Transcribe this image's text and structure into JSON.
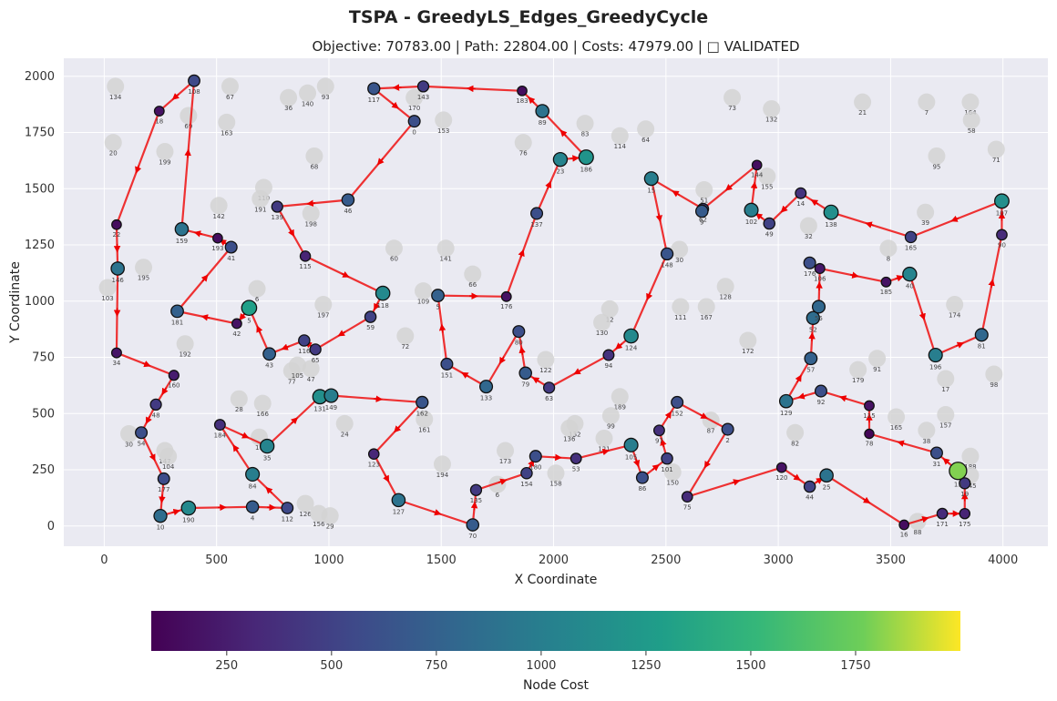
{
  "chart_data": {
    "type": "scatter",
    "title": "TSPA - GreedyLS_Edges_GreedyCycle",
    "subtitle": "Objective: 70783.00 | Path: 22804.00 | Costs: 47979.00 | □ VALIDATED",
    "xlabel": "X Coordinate",
    "ylabel": "Y Coordinate",
    "xlim": [
      -180,
      4200
    ],
    "ylim": [
      -90,
      2080
    ],
    "xticks": [
      0,
      500,
      1000,
      1500,
      2000,
      2500,
      3000,
      3500,
      4000
    ],
    "yticks": [
      0,
      250,
      500,
      750,
      1000,
      1250,
      1500,
      1750,
      2000
    ],
    "grid": true,
    "colorbar": {
      "label": "Node Cost",
      "min": 70,
      "max": 2000,
      "ticks": [
        250,
        500,
        750,
        1000,
        1250,
        1500,
        1750
      ]
    },
    "selected_nodes": [
      {
        "id": "108",
        "x": 400,
        "y": 1980,
        "cost": 560
      },
      {
        "id": "18",
        "x": 245,
        "y": 1845,
        "cost": 180
      },
      {
        "id": "22",
        "x": 55,
        "y": 1340,
        "cost": 150
      },
      {
        "id": "146",
        "x": 60,
        "y": 1145,
        "cost": 900
      },
      {
        "id": "34",
        "x": 55,
        "y": 770,
        "cost": 200
      },
      {
        "id": "160",
        "x": 310,
        "y": 670,
        "cost": 250
      },
      {
        "id": "48",
        "x": 230,
        "y": 540,
        "cost": 450
      },
      {
        "id": "54",
        "x": 165,
        "y": 415,
        "cost": 600
      },
      {
        "id": "177",
        "x": 265,
        "y": 210,
        "cost": 580
      },
      {
        "id": "10",
        "x": 250,
        "y": 45,
        "cost": 850
      },
      {
        "id": "190",
        "x": 375,
        "y": 80,
        "cost": 1100
      },
      {
        "id": "4",
        "x": 660,
        "y": 85,
        "cost": 700
      },
      {
        "id": "112",
        "x": 815,
        "y": 80,
        "cost": 550
      },
      {
        "id": "35",
        "x": 725,
        "y": 355,
        "cost": 1050
      },
      {
        "id": "84",
        "x": 660,
        "y": 230,
        "cost": 1000
      },
      {
        "id": "184",
        "x": 515,
        "y": 450,
        "cost": 380
      },
      {
        "id": "131",
        "x": 960,
        "y": 575,
        "cost": 1150
      },
      {
        "id": "149",
        "x": 1010,
        "y": 580,
        "cost": 1000
      },
      {
        "id": "162",
        "x": 1415,
        "y": 550,
        "cost": 650
      },
      {
        "id": "123",
        "x": 1200,
        "y": 320,
        "cost": 320
      },
      {
        "id": "127",
        "x": 1310,
        "y": 115,
        "cost": 900
      },
      {
        "id": "70",
        "x": 1640,
        "y": 5,
        "cost": 700
      },
      {
        "id": "135",
        "x": 1655,
        "y": 160,
        "cost": 450
      },
      {
        "id": "154",
        "x": 1880,
        "y": 235,
        "cost": 500
      },
      {
        "id": "180",
        "x": 1920,
        "y": 310,
        "cost": 600
      },
      {
        "id": "53",
        "x": 2100,
        "y": 300,
        "cost": 380
      },
      {
        "id": "105",
        "x": 2345,
        "y": 360,
        "cost": 1000
      },
      {
        "id": "86",
        "x": 2395,
        "y": 215,
        "cost": 600
      },
      {
        "id": "101",
        "x": 2505,
        "y": 300,
        "cost": 500
      },
      {
        "id": "97",
        "x": 2470,
        "y": 425,
        "cost": 380
      },
      {
        "id": "152",
        "x": 2550,
        "y": 550,
        "cost": 600
      },
      {
        "id": "2",
        "x": 2775,
        "y": 430,
        "cost": 600
      },
      {
        "id": "75",
        "x": 2595,
        "y": 130,
        "cost": 350
      },
      {
        "id": "120",
        "x": 3015,
        "y": 260,
        "cost": 180
      },
      {
        "id": "44",
        "x": 3140,
        "y": 175,
        "cost": 500
      },
      {
        "id": "25",
        "x": 3215,
        "y": 225,
        "cost": 900
      },
      {
        "id": "16",
        "x": 3560,
        "y": 5,
        "cost": 150
      },
      {
        "id": "171",
        "x": 3730,
        "y": 55,
        "cost": 350
      },
      {
        "id": "175",
        "x": 3830,
        "y": 55,
        "cost": 300
      },
      {
        "id": "19",
        "x": 3830,
        "y": 190,
        "cost": 450
      },
      {
        "id": "13",
        "x": 3800,
        "y": 245,
        "cost": 1800
      },
      {
        "id": "31",
        "x": 3705,
        "y": 325,
        "cost": 600
      },
      {
        "id": "78",
        "x": 3405,
        "y": 410,
        "cost": 100
      },
      {
        "id": "115",
        "x": 3405,
        "y": 535,
        "cost": 180
      },
      {
        "id": "92",
        "x": 3190,
        "y": 600,
        "cost": 600
      },
      {
        "id": "129",
        "x": 3035,
        "y": 555,
        "cost": 900
      },
      {
        "id": "57",
        "x": 3145,
        "y": 745,
        "cost": 750
      },
      {
        "id": "52",
        "x": 3155,
        "y": 925,
        "cost": 850
      },
      {
        "id": "55",
        "x": 3180,
        "y": 975,
        "cost": 800
      },
      {
        "id": "106",
        "x": 3185,
        "y": 1145,
        "cost": 220
      },
      {
        "id": "176",
        "x": 3140,
        "y": 1170,
        "cost": 600
      },
      {
        "id": "185",
        "x": 3480,
        "y": 1085,
        "cost": 180
      },
      {
        "id": "40",
        "x": 3585,
        "y": 1120,
        "cost": 1050
      },
      {
        "id": "196",
        "x": 3700,
        "y": 760,
        "cost": 1000
      },
      {
        "id": "81",
        "x": 3905,
        "y": 850,
        "cost": 800
      },
      {
        "id": "90",
        "x": 3995,
        "y": 1295,
        "cost": 350
      },
      {
        "id": "107",
        "x": 3995,
        "y": 1445,
        "cost": 1150
      },
      {
        "id": "165",
        "x": 3590,
        "y": 1285,
        "cost": 500
      },
      {
        "id": "138",
        "x": 3235,
        "y": 1395,
        "cost": 1150
      },
      {
        "id": "14",
        "x": 3100,
        "y": 1480,
        "cost": 400
      },
      {
        "id": "49",
        "x": 2960,
        "y": 1345,
        "cost": 500
      },
      {
        "id": "102",
        "x": 2880,
        "y": 1405,
        "cost": 1000
      },
      {
        "id": "144",
        "x": 2905,
        "y": 1605,
        "cost": 150
      },
      {
        "id": "62",
        "x": 2665,
        "y": 1410,
        "cost": 480
      },
      {
        "id": "9",
        "x": 2660,
        "y": 1400,
        "cost": 700
      },
      {
        "id": "15",
        "x": 2435,
        "y": 1545,
        "cost": 1000
      },
      {
        "id": "148",
        "x": 2505,
        "y": 1210,
        "cost": 650
      },
      {
        "id": "124",
        "x": 2345,
        "y": 845,
        "cost": 1100
      },
      {
        "id": "94",
        "x": 2245,
        "y": 760,
        "cost": 400
      },
      {
        "id": "63",
        "x": 1980,
        "y": 615,
        "cost": 450
      },
      {
        "id": "79",
        "x": 1875,
        "y": 680,
        "cost": 700
      },
      {
        "id": "80",
        "x": 1845,
        "y": 865,
        "cost": 600
      },
      {
        "id": "133",
        "x": 1700,
        "y": 620,
        "cost": 800
      },
      {
        "id": "151",
        "x": 1525,
        "y": 720,
        "cost": 600
      },
      {
        "id": "5",
        "x": 1485,
        "y": 1025,
        "cost": 750
      },
      {
        "id": "176b",
        "x": 1790,
        "y": 1020,
        "cost": 180
      },
      {
        "id": "137",
        "x": 1925,
        "y": 1390,
        "cost": 600
      },
      {
        "id": "23",
        "x": 2030,
        "y": 1630,
        "cost": 1050
      },
      {
        "id": "186",
        "x": 2145,
        "y": 1640,
        "cost": 1200
      },
      {
        "id": "89",
        "x": 1950,
        "y": 1845,
        "cost": 900
      },
      {
        "id": "183",
        "x": 1860,
        "y": 1935,
        "cost": 150
      },
      {
        "id": "143",
        "x": 1420,
        "y": 1955,
        "cost": 450
      },
      {
        "id": "117",
        "x": 1200,
        "y": 1945,
        "cost": 650
      },
      {
        "id": "0",
        "x": 1380,
        "y": 1800,
        "cost": 600
      },
      {
        "id": "46",
        "x": 1085,
        "y": 1450,
        "cost": 700
      },
      {
        "id": "139",
        "x": 770,
        "y": 1420,
        "cost": 450
      },
      {
        "id": "115b",
        "x": 895,
        "y": 1200,
        "cost": 300
      },
      {
        "id": "118",
        "x": 1240,
        "y": 1035,
        "cost": 1100
      },
      {
        "id": "59",
        "x": 1185,
        "y": 930,
        "cost": 500
      },
      {
        "id": "65",
        "x": 940,
        "y": 785,
        "cost": 450
      },
      {
        "id": "116",
        "x": 890,
        "y": 825,
        "cost": 500
      },
      {
        "id": "43",
        "x": 735,
        "y": 765,
        "cost": 750
      },
      {
        "id": "5b",
        "x": 645,
        "y": 970,
        "cost": 1300
      },
      {
        "id": "42",
        "x": 590,
        "y": 900,
        "cost": 180
      },
      {
        "id": "181",
        "x": 325,
        "y": 955,
        "cost": 750
      },
      {
        "id": "41",
        "x": 565,
        "y": 1240,
        "cost": 600
      },
      {
        "id": "193",
        "x": 505,
        "y": 1280,
        "cost": 150
      },
      {
        "id": "159",
        "x": 345,
        "y": 1320,
        "cost": 900
      }
    ],
    "other_nodes": [
      {
        "id": "134",
        "x": 50,
        "y": 1955
      },
      {
        "id": "67",
        "x": 560,
        "y": 1955
      },
      {
        "id": "36",
        "x": 820,
        "y": 1905
      },
      {
        "id": "140",
        "x": 905,
        "y": 1925
      },
      {
        "id": "93",
        "x": 985,
        "y": 1955
      },
      {
        "id": "170",
        "x": 1380,
        "y": 1905
      },
      {
        "id": "69",
        "x": 375,
        "y": 1825
      },
      {
        "id": "163",
        "x": 545,
        "y": 1795
      },
      {
        "id": "153",
        "x": 1510,
        "y": 1805
      },
      {
        "id": "83",
        "x": 2140,
        "y": 1790
      },
      {
        "id": "114",
        "x": 2295,
        "y": 1735
      },
      {
        "id": "64",
        "x": 2410,
        "y": 1765
      },
      {
        "id": "73",
        "x": 2795,
        "y": 1905
      },
      {
        "id": "132",
        "x": 2970,
        "y": 1855
      },
      {
        "id": "21",
        "x": 3375,
        "y": 1885
      },
      {
        "id": "7",
        "x": 3660,
        "y": 1885
      },
      {
        "id": "164",
        "x": 3855,
        "y": 1885
      },
      {
        "id": "58",
        "x": 3860,
        "y": 1805
      },
      {
        "id": "20",
        "x": 40,
        "y": 1705
      },
      {
        "id": "199",
        "x": 270,
        "y": 1665
      },
      {
        "id": "68",
        "x": 935,
        "y": 1645
      },
      {
        "id": "76",
        "x": 1865,
        "y": 1705
      },
      {
        "id": "95",
        "x": 3705,
        "y": 1645
      },
      {
        "id": "71",
        "x": 3970,
        "y": 1675
      },
      {
        "id": "110",
        "x": 710,
        "y": 1505
      },
      {
        "id": "191",
        "x": 695,
        "y": 1455
      },
      {
        "id": "198",
        "x": 920,
        "y": 1390
      },
      {
        "id": "142",
        "x": 510,
        "y": 1425
      },
      {
        "id": "155",
        "x": 2950,
        "y": 1555
      },
      {
        "id": "51",
        "x": 2670,
        "y": 1495
      },
      {
        "id": "39",
        "x": 3655,
        "y": 1395
      },
      {
        "id": "32",
        "x": 3135,
        "y": 1335
      },
      {
        "id": "60",
        "x": 1290,
        "y": 1235
      },
      {
        "id": "141",
        "x": 1520,
        "y": 1235
      },
      {
        "id": "195",
        "x": 175,
        "y": 1150
      },
      {
        "id": "103",
        "x": 15,
        "y": 1060
      },
      {
        "id": "8",
        "x": 3490,
        "y": 1235
      },
      {
        "id": "30",
        "x": 2560,
        "y": 1230
      },
      {
        "id": "66",
        "x": 1640,
        "y": 1120
      },
      {
        "id": "128",
        "x": 2765,
        "y": 1065
      },
      {
        "id": "6",
        "x": 680,
        "y": 1055
      },
      {
        "id": "197",
        "x": 975,
        "y": 985
      },
      {
        "id": "109",
        "x": 1420,
        "y": 1045
      },
      {
        "id": "111",
        "x": 2565,
        "y": 975
      },
      {
        "id": "167",
        "x": 2680,
        "y": 975
      },
      {
        "id": "174",
        "x": 3785,
        "y": 985
      },
      {
        "id": "12",
        "x": 2250,
        "y": 965
      },
      {
        "id": "130",
        "x": 2215,
        "y": 905
      },
      {
        "id": "172",
        "x": 2865,
        "y": 825
      },
      {
        "id": "192",
        "x": 360,
        "y": 810
      },
      {
        "id": "72",
        "x": 1340,
        "y": 845
      },
      {
        "id": "122",
        "x": 1965,
        "y": 740
      },
      {
        "id": "91",
        "x": 3440,
        "y": 745
      },
      {
        "id": "179",
        "x": 3355,
        "y": 695
      },
      {
        "id": "98",
        "x": 3960,
        "y": 675
      },
      {
        "id": "17",
        "x": 3745,
        "y": 655
      },
      {
        "id": "77",
        "x": 835,
        "y": 690
      },
      {
        "id": "47",
        "x": 920,
        "y": 700
      },
      {
        "id": "105b",
        "x": 860,
        "y": 715
      },
      {
        "id": "189",
        "x": 2295,
        "y": 575
      },
      {
        "id": "28",
        "x": 600,
        "y": 565
      },
      {
        "id": "166",
        "x": 705,
        "y": 545
      },
      {
        "id": "24",
        "x": 1070,
        "y": 455
      },
      {
        "id": "161",
        "x": 1425,
        "y": 475
      },
      {
        "id": "99",
        "x": 2255,
        "y": 490
      },
      {
        "id": "132b",
        "x": 2095,
        "y": 455
      },
      {
        "id": "136",
        "x": 2070,
        "y": 435
      },
      {
        "id": "121",
        "x": 2225,
        "y": 390
      },
      {
        "id": "87",
        "x": 2700,
        "y": 470
      },
      {
        "id": "165b",
        "x": 3525,
        "y": 485
      },
      {
        "id": "157",
        "x": 3745,
        "y": 495
      },
      {
        "id": "82",
        "x": 3075,
        "y": 415
      },
      {
        "id": "38",
        "x": 3660,
        "y": 425
      },
      {
        "id": "188",
        "x": 3855,
        "y": 310
      },
      {
        "id": "147",
        "x": 270,
        "y": 335
      },
      {
        "id": "104",
        "x": 285,
        "y": 310
      },
      {
        "id": "30b",
        "x": 110,
        "y": 410
      },
      {
        "id": "11",
        "x": 690,
        "y": 395
      },
      {
        "id": "173",
        "x": 1785,
        "y": 335
      },
      {
        "id": "194",
        "x": 1505,
        "y": 275
      },
      {
        "id": "158",
        "x": 2010,
        "y": 235
      },
      {
        "id": "150",
        "x": 2530,
        "y": 240
      },
      {
        "id": "6b",
        "x": 1750,
        "y": 185
      },
      {
        "id": "126",
        "x": 895,
        "y": 100
      },
      {
        "id": "156",
        "x": 955,
        "y": 55
      },
      {
        "id": "29",
        "x": 1005,
        "y": 45
      },
      {
        "id": "88",
        "x": 3620,
        "y": 20
      },
      {
        "id": "145",
        "x": 3855,
        "y": 225
      }
    ],
    "cycle": [
      "108",
      "18",
      "22",
      "146",
      "34",
      "160",
      "48",
      "54",
      "177",
      "10",
      "190",
      "4",
      "112",
      "84",
      "184",
      "35",
      "131",
      "149",
      "162",
      "123",
      "127",
      "70",
      "135",
      "154",
      "180",
      "53",
      "105",
      "86",
      "101",
      "97",
      "152",
      "2",
      "75",
      "120",
      "44",
      "25",
      "16",
      "171",
      "175",
      "19",
      "13",
      "31",
      "78",
      "115",
      "92",
      "129",
      "57",
      "52",
      "55",
      "106",
      "185",
      "40",
      "196",
      "81",
      "90",
      "107",
      "165",
      "138",
      "14",
      "49",
      "102",
      "144",
      "62",
      "15",
      "148",
      "124",
      "94",
      "63",
      "79",
      "80",
      "133",
      "151",
      "5",
      "176b",
      "137",
      "23",
      "186",
      "89",
      "183",
      "143",
      "117",
      "0",
      "46",
      "139",
      "115b",
      "118",
      "59",
      "65",
      "116",
      "43",
      "5b",
      "42",
      "181",
      "41",
      "193",
      "159",
      "108"
    ]
  }
}
